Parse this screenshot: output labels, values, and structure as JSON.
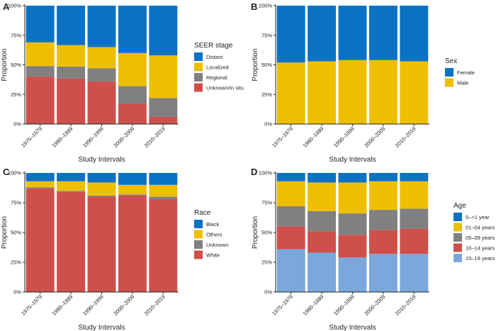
{
  "chart_data": [
    {
      "panel": "A",
      "type": "bar",
      "stacked": true,
      "normalized": true,
      "xlabel": "Study Intervals",
      "ylabel": "Proportion",
      "ylim": [
        0,
        1
      ],
      "y_ticks": [
        "0%",
        "25%",
        "50%",
        "75%",
        "100%"
      ],
      "categories": [
        "1975–1979",
        "1980–1989",
        "1990–1999",
        "2000–2009",
        "2010–2019"
      ],
      "legend_title": "SEER stage",
      "legend_position": "right",
      "series": [
        {
          "name": "Distant",
          "color": "#0a72c4",
          "values": [
            0.31,
            0.33,
            0.35,
            0.4,
            0.42
          ]
        },
        {
          "name": "Localized",
          "color": "#eebf00",
          "values": [
            0.2,
            0.18,
            0.18,
            0.28,
            0.36
          ]
        },
        {
          "name": "Regional",
          "color": "#808080",
          "values": [
            0.09,
            0.1,
            0.11,
            0.15,
            0.16
          ]
        },
        {
          "name": "Unknown/in situ",
          "color": "#cf4f4a",
          "values": [
            0.4,
            0.38,
            0.36,
            0.17,
            0.06
          ]
        }
      ]
    },
    {
      "panel": "B",
      "type": "bar",
      "stacked": true,
      "normalized": true,
      "xlabel": "Study Intervals",
      "ylabel": "Proportion",
      "ylim": [
        0,
        1
      ],
      "y_ticks": [
        "0%",
        "25%",
        "50%",
        "75%",
        "100%"
      ],
      "categories": [
        "1975–1979",
        "1980–1989",
        "1990–1999",
        "2000–2009",
        "2010–2019"
      ],
      "legend_title": "Sex",
      "legend_position": "right",
      "series": [
        {
          "name": "Female",
          "color": "#0a72c4",
          "values": [
            0.48,
            0.47,
            0.46,
            0.46,
            0.47
          ]
        },
        {
          "name": "Male",
          "color": "#eebf00",
          "values": [
            0.52,
            0.53,
            0.54,
            0.54,
            0.53
          ]
        }
      ]
    },
    {
      "panel": "C",
      "type": "bar",
      "stacked": true,
      "normalized": true,
      "xlabel": "Study Intervals",
      "ylabel": "Proportion",
      "ylim": [
        0,
        1
      ],
      "y_ticks": [
        "0%",
        "25%",
        "50%",
        "75%",
        "100%"
      ],
      "categories": [
        "1975–1979",
        "1980–1989",
        "1990–1999",
        "2000–2009",
        "2010–2019"
      ],
      "legend_title": "Race",
      "legend_position": "right",
      "series": [
        {
          "name": "Black",
          "color": "#0a72c4",
          "values": [
            0.07,
            0.07,
            0.08,
            0.1,
            0.1
          ]
        },
        {
          "name": "Others",
          "color": "#eebf00",
          "values": [
            0.05,
            0.08,
            0.11,
            0.08,
            0.1
          ]
        },
        {
          "name": "Unknown",
          "color": "#808080",
          "values": [
            0.01,
            0.01,
            0.01,
            0.01,
            0.02
          ]
        },
        {
          "name": "White",
          "color": "#cf4f4a",
          "values": [
            0.87,
            0.84,
            0.8,
            0.81,
            0.78
          ]
        }
      ]
    },
    {
      "panel": "D",
      "type": "bar",
      "stacked": true,
      "normalized": true,
      "xlabel": "Study Intervals",
      "ylabel": "Proportion",
      "ylim": [
        0,
        1
      ],
      "y_ticks": [
        "0%",
        "25%",
        "50%",
        "75%",
        "100%"
      ],
      "categories": [
        "1975–1979",
        "1980–1989",
        "1990–1999",
        "2000–2009",
        "2010–2019"
      ],
      "legend_title": "Age",
      "legend_position": "right",
      "series": [
        {
          "name": "0–<1 year",
          "color": "#0a72c4",
          "values": [
            0.07,
            0.08,
            0.08,
            0.07,
            0.07
          ]
        },
        {
          "name": "01–04 years",
          "color": "#eebf00",
          "values": [
            0.21,
            0.24,
            0.26,
            0.24,
            0.23
          ]
        },
        {
          "name": "05–09 years",
          "color": "#808080",
          "values": [
            0.17,
            0.17,
            0.18,
            0.17,
            0.17
          ]
        },
        {
          "name": "10–14 years",
          "color": "#cf4f4a",
          "values": [
            0.19,
            0.18,
            0.19,
            0.2,
            0.21
          ]
        },
        {
          "name": "15–19 years",
          "color": "#7ba7dc",
          "values": [
            0.36,
            0.33,
            0.29,
            0.32,
            0.32
          ]
        }
      ]
    }
  ]
}
